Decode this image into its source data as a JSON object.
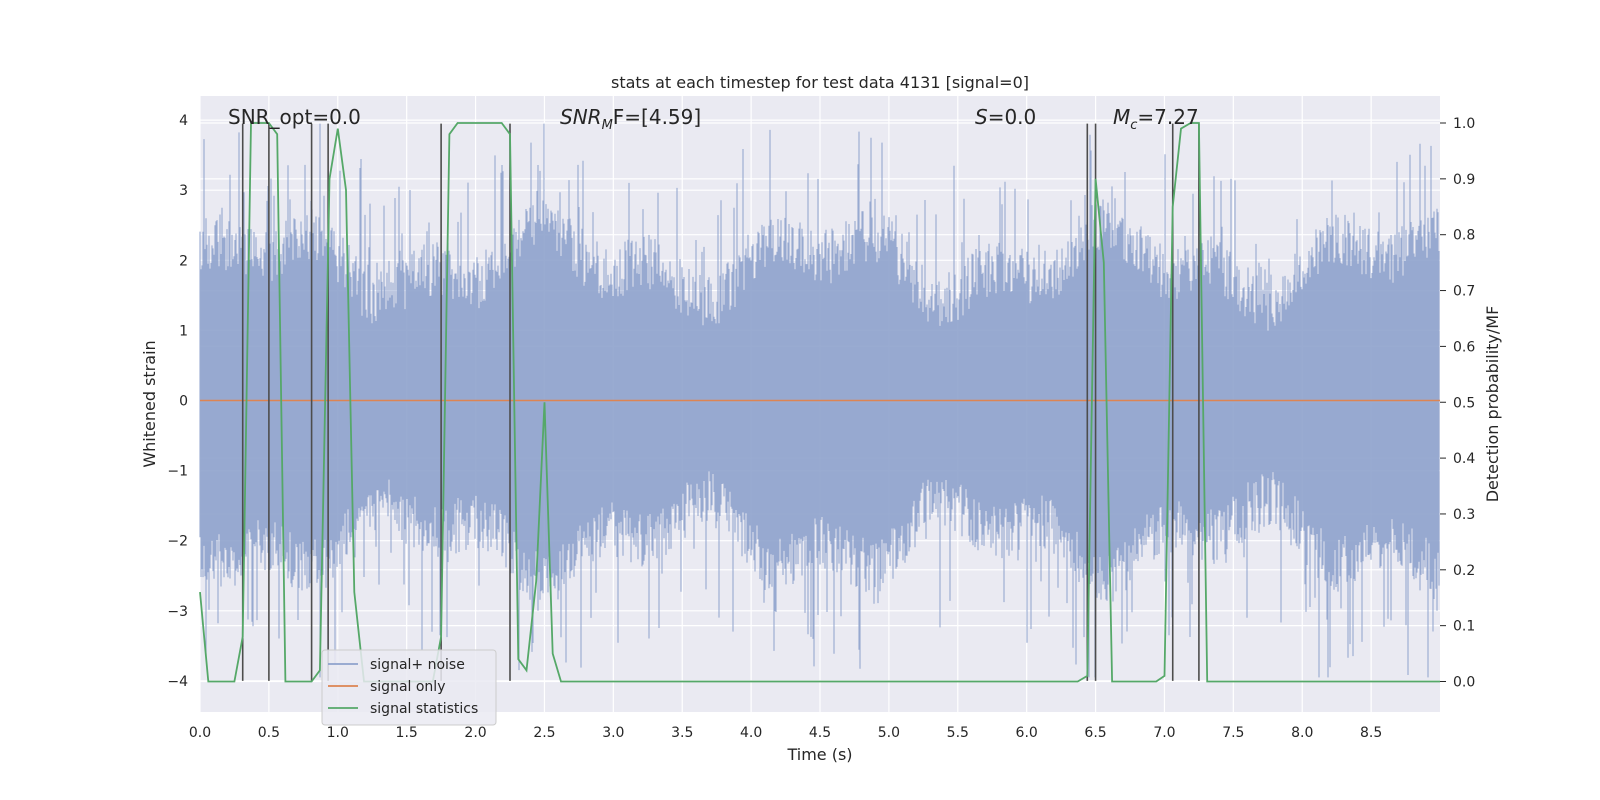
{
  "chart_data": {
    "type": "line",
    "title": "stats at each timestep for test data 4131 [signal=0]",
    "xlabel": "Time (s)",
    "ylabel": "Whitened strain",
    "y2label": "Detection probability/MF",
    "xlim": [
      0.0,
      9.0
    ],
    "ylim": [
      -4.4,
      4.35
    ],
    "y2lim": [
      -0.048,
      1.045
    ],
    "x_ticks": [
      "0.0",
      "0.5",
      "1.0",
      "1.5",
      "2.0",
      "2.5",
      "3.0",
      "3.5",
      "4.0",
      "4.5",
      "5.0",
      "5.5",
      "6.0",
      "6.5",
      "7.0",
      "7.5",
      "8.0",
      "8.5"
    ],
    "y_ticks": [
      "4",
      "3",
      "2",
      "1",
      "0",
      "−1",
      "−2",
      "−3",
      "−4"
    ],
    "y2_ticks": [
      "1.0",
      "0.9",
      "0.8",
      "0.7",
      "0.6",
      "0.5",
      "0.4",
      "0.3",
      "0.2",
      "0.1",
      "0.0"
    ],
    "grid": true,
    "legend_position": "lower-left",
    "series": [
      {
        "name": "signal+ noise",
        "color": "#8ea2cc",
        "axis": "left",
        "kind": "noise",
        "amplitude_range": [
          -4.0,
          4.0
        ]
      },
      {
        "name": "signal only",
        "color": "#dd8452",
        "axis": "left",
        "x": [
          0.0,
          9.0
        ],
        "y": [
          0.0,
          0.0
        ]
      },
      {
        "name": "signal statistics",
        "color": "#55a868",
        "axis": "right",
        "x": [
          0.0,
          0.06,
          0.12,
          0.18,
          0.25,
          0.31,
          0.37,
          0.44,
          0.5,
          0.56,
          0.62,
          0.69,
          0.75,
          0.81,
          0.87,
          0.94,
          1.0,
          1.06,
          1.12,
          1.19,
          1.25,
          1.31,
          1.37,
          1.44,
          1.5,
          1.56,
          1.62,
          1.69,
          1.75,
          1.81,
          1.87,
          1.94,
          2.0,
          2.06,
          2.12,
          2.19,
          2.25,
          2.31,
          2.37,
          2.44,
          2.5,
          2.56,
          2.62,
          2.69,
          2.75,
          6.37,
          6.44,
          6.5,
          6.56,
          6.62,
          6.69,
          6.75,
          6.81,
          6.87,
          6.94,
          7.0,
          7.06,
          7.12,
          7.19,
          7.25,
          7.31,
          7.37,
          9.0
        ],
        "y": [
          0.16,
          0.0,
          0.0,
          0.0,
          0.0,
          0.08,
          1.0,
          1.0,
          1.0,
          0.98,
          0.0,
          0.0,
          0.0,
          0.0,
          0.02,
          0.9,
          0.99,
          0.88,
          0.16,
          0.0,
          0.0,
          0.0,
          0.0,
          0.0,
          0.0,
          0.0,
          0.0,
          0.0,
          0.08,
          0.98,
          1.0,
          1.0,
          1.0,
          1.0,
          1.0,
          1.0,
          0.98,
          0.04,
          0.02,
          0.18,
          0.5,
          0.05,
          0.0,
          0.0,
          0.0,
          0.0,
          0.01,
          0.9,
          0.75,
          0.0,
          0.0,
          0.0,
          0.0,
          0.0,
          0.0,
          0.01,
          0.85,
          0.99,
          1.0,
          1.0,
          0.0,
          0.0,
          0.0
        ]
      }
    ],
    "vlines": [
      0.31,
      0.5,
      0.81,
      0.93,
      1.75,
      2.25,
      6.44,
      6.5,
      7.06,
      7.25
    ],
    "annotations": [
      {
        "key": "snr_opt",
        "text": "SNR_opt=0.0"
      },
      {
        "key": "snr_mf",
        "base": "SNR",
        "sub": "M",
        "rest": "F=[4.59]"
      },
      {
        "key": "s",
        "base": "S",
        "rest": "=0.0"
      },
      {
        "key": "mc",
        "base": "M",
        "sub": "c",
        "rest": "=7.27"
      }
    ]
  }
}
